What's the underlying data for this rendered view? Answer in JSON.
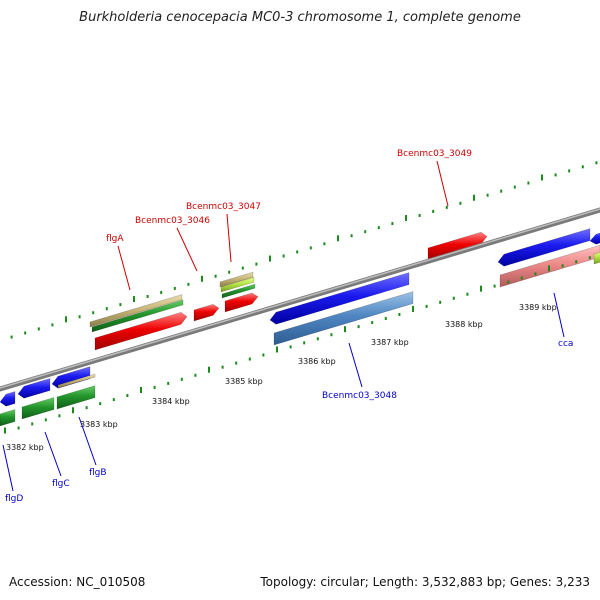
{
  "title": "Burkholderia cenocepacia MC0-3 chromosome 1, complete genome",
  "footer": {
    "accession": "Accession: NC_010508",
    "summary": "Topology: circular; Length: 3,532,883 bp; Genes: 3,233"
  },
  "colors": {
    "backbone": "#888888",
    "ticks": "#1a8a1a",
    "tick_label": "#111111",
    "forward_label": "#cc0000",
    "reverse_label": "#0000cc"
  },
  "scale_labels": [
    "3382 kbp",
    "3383 kbp",
    "3384 kbp",
    "3385 kbp",
    "3386 kbp",
    "3387 kbp",
    "3388 kbp",
    "3389 kbp"
  ],
  "gene_labels": {
    "flgA": "flgA",
    "Bcenmc03_3046": "Bcenmc03_3046",
    "Bcenmc03_3047": "Bcenmc03_3047",
    "Bcenmc03_3049": "Bcenmc03_3049",
    "Bcenmc03_3048": "Bcenmc03_3048",
    "cca": "cca",
    "flgB": "flgB",
    "flgC": "flgC",
    "flgD": "flgD"
  }
}
